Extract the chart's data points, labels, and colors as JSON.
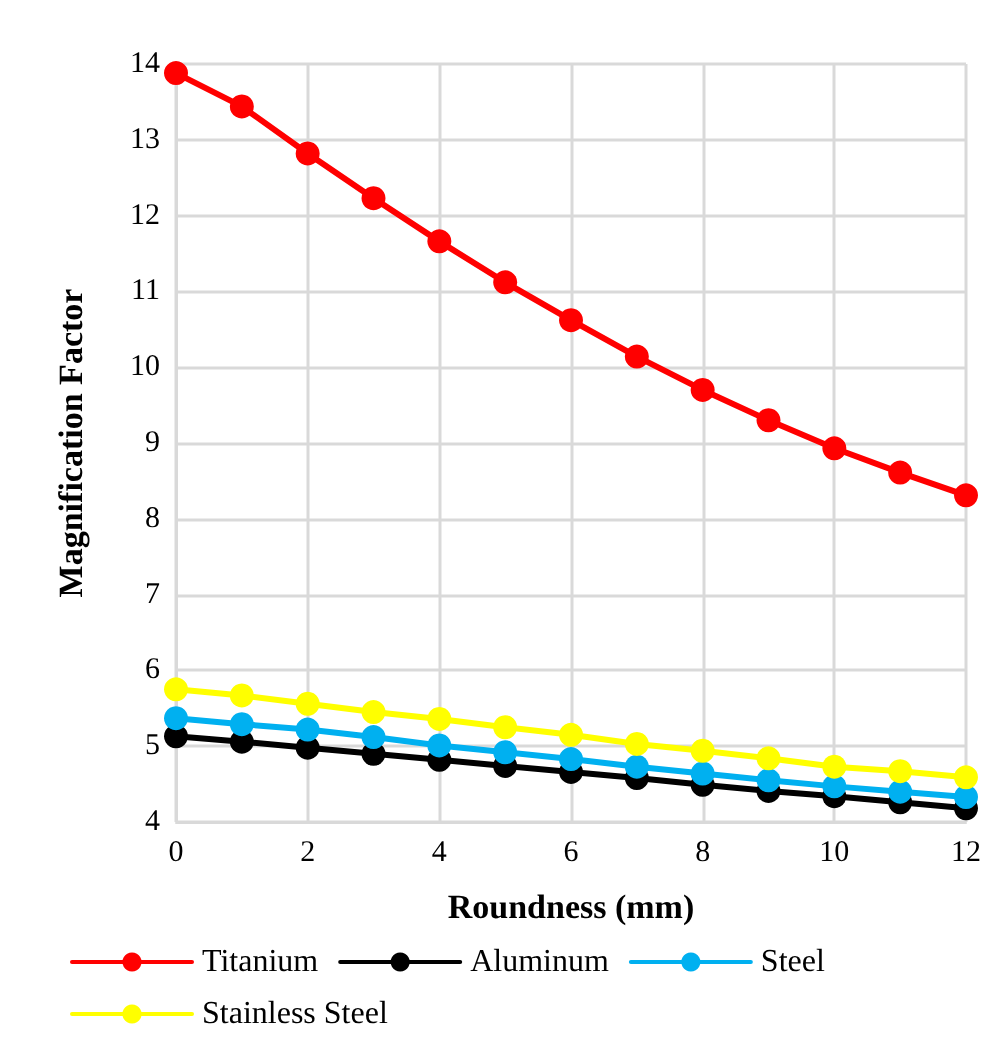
{
  "chart_data": {
    "type": "line",
    "xlabel": "Roundness (mm)",
    "ylabel": "Magnification Factor",
    "x": [
      0,
      1,
      2,
      3,
      4,
      5,
      6,
      7,
      8,
      9,
      10,
      11,
      12
    ],
    "series": [
      {
        "name": "Titanium",
        "color": "#ff0000",
        "values": [
          13.88,
          13.44,
          12.82,
          12.23,
          11.66,
          11.12,
          10.62,
          10.14,
          9.7,
          9.3,
          8.93,
          8.61,
          8.31
        ]
      },
      {
        "name": "Aluminum",
        "color": "#000000",
        "values": [
          5.13,
          5.06,
          4.98,
          4.9,
          4.82,
          4.74,
          4.66,
          4.58,
          4.49,
          4.41,
          4.34,
          4.26,
          4.18
        ]
      },
      {
        "name": "Steel",
        "color": "#00b0f0",
        "values": [
          5.37,
          5.29,
          5.22,
          5.12,
          5.01,
          4.92,
          4.83,
          4.73,
          4.64,
          4.55,
          4.47,
          4.4,
          4.33
        ]
      },
      {
        "name": "Stainless Steel",
        "color": "#ffff00",
        "values": [
          5.75,
          5.67,
          5.56,
          5.45,
          5.36,
          5.25,
          5.15,
          5.03,
          4.94,
          4.84,
          4.73,
          4.67,
          4.59
        ]
      }
    ],
    "xlim": [
      0,
      12
    ],
    "xticks": [
      0,
      2,
      4,
      6,
      8,
      10,
      12
    ],
    "ylim": [
      4,
      14
    ],
    "yticks": [
      4,
      5,
      6,
      7,
      8,
      9,
      10,
      11,
      12,
      13,
      14
    ],
    "grid": true,
    "legend": "bottom",
    "marker": "circle",
    "line_style": "solid"
  }
}
